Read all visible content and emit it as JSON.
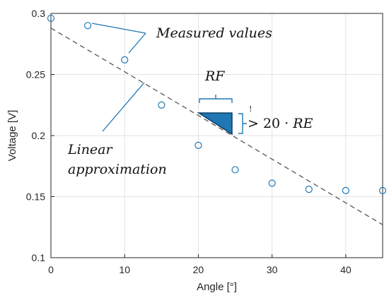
{
  "chart_data": {
    "type": "scatter",
    "xlabel": "Angle [°]",
    "ylabel": "Voltage [V]",
    "xlim": [
      0,
      45
    ],
    "ylim": [
      0.1,
      0.3
    ],
    "x_ticks": [
      0,
      10,
      20,
      30,
      40
    ],
    "x_tick_labels": [
      "0",
      "10",
      "20",
      "30",
      "40"
    ],
    "y_ticks": [
      0.1,
      0.15,
      0.2,
      0.25,
      0.3
    ],
    "y_tick_labels": [
      "0.1",
      "0.15",
      "0.2",
      "0.25",
      "0.3"
    ],
    "grid": true,
    "series": [
      {
        "kind": "markers",
        "marker": "open-circle",
        "color": "#1f77b4",
        "x": [
          0,
          5,
          10,
          15,
          20,
          25,
          30,
          35,
          40,
          45
        ],
        "y": [
          0.296,
          0.29,
          0.262,
          0.225,
          0.192,
          0.172,
          0.161,
          0.156,
          0.155,
          0.155
        ]
      },
      {
        "kind": "dashed-line",
        "color": "#555555",
        "x": [
          0,
          45
        ],
        "y": [
          0.288,
          0.127
        ]
      }
    ],
    "annotations": {
      "measured_values": "Measured values",
      "linear_line1": "Linear",
      "linear_line2": "approximation",
      "rf": "RF",
      "exclamation": "!",
      "gt": "> 20 · ",
      "re": "RE",
      "triangle_color": "#1f77b4"
    }
  }
}
